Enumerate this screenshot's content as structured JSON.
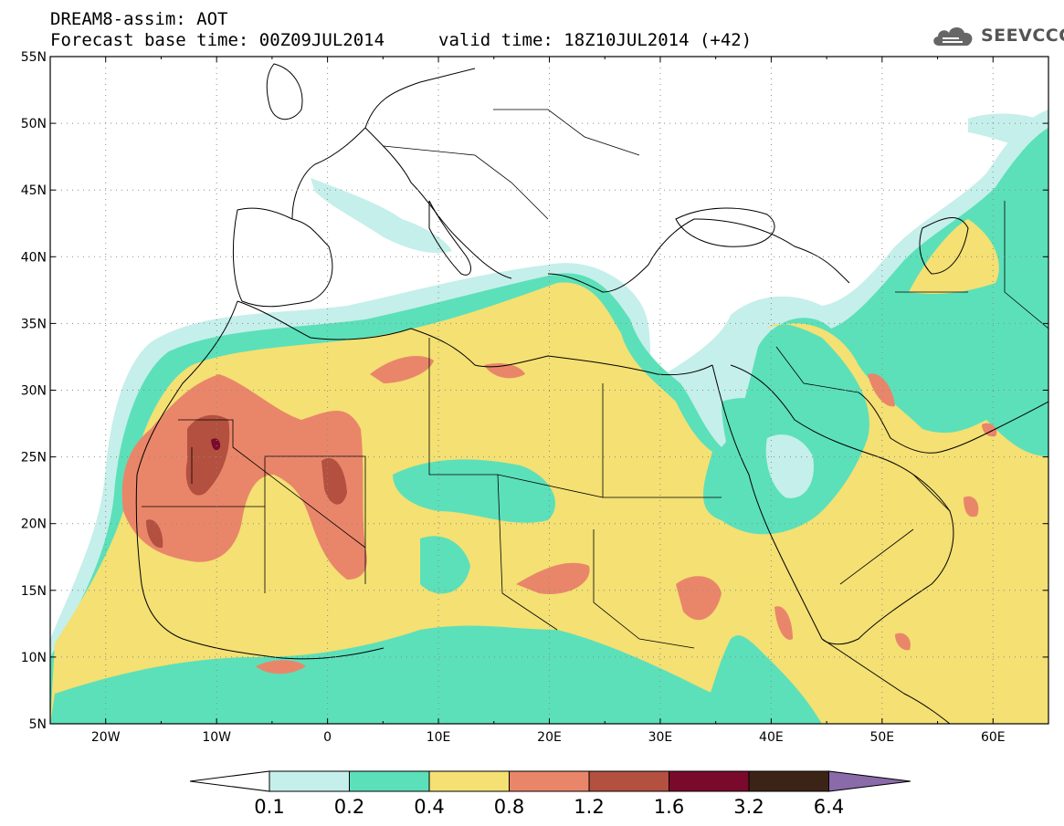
{
  "header": {
    "title_line1": "DREAM8-assim: AOT",
    "title_line2": "Forecast base time: 00Z09JUL2014",
    "valid_time": "valid time: 18Z10JUL2014 (+42)"
  },
  "logo": {
    "text": "SEEVCCC",
    "icon": "cloud-icon"
  },
  "map": {
    "lat_labels": [
      "55N",
      "50N",
      "45N",
      "40N",
      "35N",
      "30N",
      "25N",
      "20N",
      "15N",
      "10N",
      "5N"
    ],
    "lat_values": [
      55,
      50,
      45,
      40,
      35,
      30,
      25,
      20,
      15,
      10,
      5
    ],
    "lon_labels": [
      "20W",
      "10W",
      "0",
      "10E",
      "20E",
      "30E",
      "40E",
      "50E",
      "60E"
    ],
    "lon_values": [
      -20,
      -10,
      0,
      10,
      20,
      30,
      40,
      50,
      60
    ],
    "lon_range": [
      -25,
      65
    ],
    "lat_range": [
      5,
      55
    ],
    "grid": "dotted"
  },
  "colorbar": {
    "labels": [
      "0.1",
      "0.2",
      "0.4",
      "0.8",
      "1.2",
      "1.6",
      "3.2",
      "6.4"
    ],
    "colors": [
      "#ffffff",
      "#c5efea",
      "#5ce0b9",
      "#f4e073",
      "#e9866a",
      "#b3503f",
      "#7a0a2c",
      "#3b2416",
      "#8a6aa9"
    ]
  },
  "colors": {
    "aot_0_1_0_2": "#c5efea",
    "aot_0_2_0_4": "#5ce0b9",
    "aot_0_4_0_8": "#f4e073",
    "aot_0_8_1_2": "#e9866a",
    "aot_1_2_1_6": "#b3503f",
    "aot_1_6_3_2": "#7a0a2c"
  }
}
